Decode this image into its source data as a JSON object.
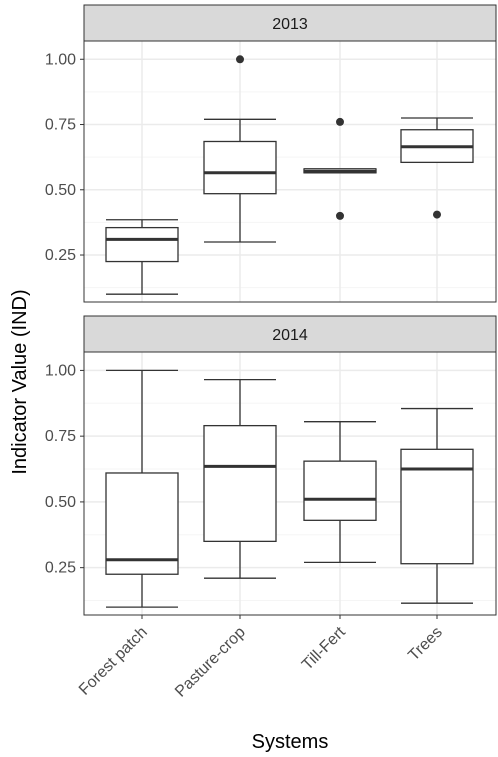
{
  "chart_data": {
    "type": "boxplot",
    "xlabel": "Systems",
    "ylabel": "Indicator Value (IND)",
    "categories": [
      "Forest patch",
      "Pasture-crop",
      "Till-Fert",
      "Trees"
    ],
    "ylim": [
      0.07,
      1.07
    ],
    "yticks": [
      0.25,
      0.5,
      0.75,
      1.0
    ],
    "ytick_labels": [
      "0.25",
      "0.50",
      "0.75",
      "1.00"
    ],
    "grid": true,
    "facets": [
      {
        "label": "2013",
        "boxes": [
          {
            "category": "Forest patch",
            "min": 0.1,
            "q1": 0.225,
            "median": 0.31,
            "q3": 0.355,
            "max": 0.385,
            "outliers": []
          },
          {
            "category": "Pasture-crop",
            "min": 0.3,
            "q1": 0.485,
            "median": 0.565,
            "q3": 0.685,
            "max": 0.77,
            "outliers": [
              1.0
            ]
          },
          {
            "category": "Till-Fert",
            "min": 0.565,
            "q1": 0.565,
            "median": 0.57,
            "q3": 0.58,
            "max": 0.58,
            "outliers": [
              0.76,
              0.4
            ]
          },
          {
            "category": "Trees",
            "min": 0.605,
            "q1": 0.605,
            "median": 0.665,
            "q3": 0.73,
            "max": 0.775,
            "outliers": [
              0.405
            ]
          }
        ]
      },
      {
        "label": "2014",
        "boxes": [
          {
            "category": "Forest patch",
            "min": 0.1,
            "q1": 0.225,
            "median": 0.28,
            "q3": 0.61,
            "max": 1.0,
            "outliers": []
          },
          {
            "category": "Pasture-crop",
            "min": 0.21,
            "q1": 0.35,
            "median": 0.635,
            "q3": 0.79,
            "max": 0.965,
            "outliers": []
          },
          {
            "category": "Till-Fert",
            "min": 0.27,
            "q1": 0.43,
            "median": 0.51,
            "q3": 0.655,
            "max": 0.805,
            "outliers": []
          },
          {
            "category": "Trees",
            "min": 0.115,
            "q1": 0.265,
            "median": 0.625,
            "q3": 0.7,
            "max": 0.855,
            "outliers": []
          }
        ]
      }
    ],
    "colors": {
      "panel_border": "#333333",
      "strip_fill": "#d9d9d9",
      "grid_major": "#ebebeb",
      "grid_minor": "#f5f5f5",
      "box_line": "#333333",
      "outlier": "#333333"
    }
  }
}
